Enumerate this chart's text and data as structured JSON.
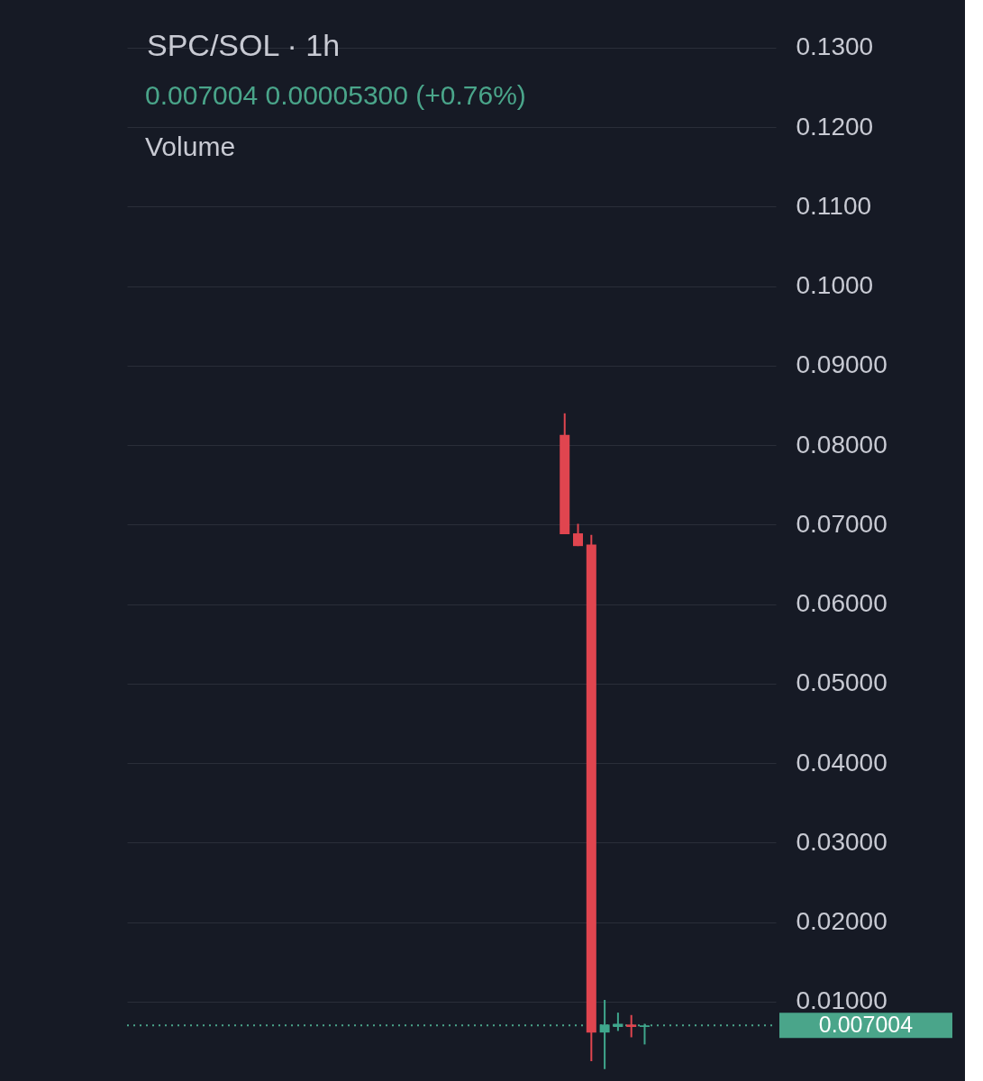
{
  "chart_data": {
    "type": "candlestick",
    "title": "SPC/SOL · 1h",
    "annotations": [
      "0.007004  0.00005300 (+0.76%)",
      "Volume"
    ],
    "categories": [
      null,
      null,
      null,
      null,
      null,
      null,
      null,
      null,
      null,
      null,
      null,
      null,
      null,
      null,
      null,
      null,
      null,
      null,
      null,
      null,
      null,
      null,
      null,
      null,
      null,
      null,
      null,
      null,
      null,
      null,
      null,
      null,
      null,
      null,
      null,
      null,
      null,
      null,
      null,
      null,
      null,
      null,
      null,
      null,
      null,
      null,
      null,
      null
    ],
    "ohlc": [
      null,
      null,
      null,
      null,
      null,
      null,
      null,
      null,
      null,
      null,
      null,
      null,
      null,
      null,
      null,
      null,
      null,
      null,
      null,
      null,
      null,
      null,
      null,
      null,
      null,
      null,
      null,
      null,
      null,
      null,
      null,
      null,
      [
        0.0813,
        0.084,
        0.0688,
        0.0688
      ],
      [
        0.0689,
        0.0701,
        0.0673,
        0.0673
      ],
      [
        0.0675,
        0.0687,
        0.0025,
        0.0061
      ],
      [
        0.0061,
        0.0102,
        0.0015,
        0.0071
      ],
      [
        0.0068,
        0.0086,
        0.0063,
        0.0072
      ],
      [
        0.0071,
        0.0083,
        0.0055,
        0.0068
      ],
      [
        0.0068,
        0.0072,
        0.0046,
        0.007
      ],
      null,
      null,
      null,
      null,
      null,
      null,
      null,
      null,
      null
    ],
    "colors": [
      null,
      null,
      null,
      null,
      null,
      null,
      null,
      null,
      null,
      null,
      null,
      null,
      null,
      null,
      null,
      null,
      null,
      null,
      null,
      null,
      null,
      null,
      null,
      null,
      null,
      null,
      null,
      null,
      null,
      null,
      null,
      null,
      "#e0454f",
      "#e0454f",
      "#e0454f",
      "#3fa68c",
      "#3fa68c",
      "#e0454f",
      "#3fa68c",
      null,
      null,
      null,
      null,
      null,
      null,
      null,
      null,
      null
    ],
    "ylim": [
      0,
      0.136
    ],
    "yticks": [
      {
        "value": 0.01,
        "label": "0.01000"
      },
      {
        "value": 0.02,
        "label": "0.02000"
      },
      {
        "value": 0.03,
        "label": "0.03000"
      },
      {
        "value": 0.04,
        "label": "0.04000"
      },
      {
        "value": 0.05,
        "label": "0.05000"
      },
      {
        "value": 0.06,
        "label": "0.06000"
      },
      {
        "value": 0.07,
        "label": "0.07000"
      },
      {
        "value": 0.08,
        "label": "0.08000"
      },
      {
        "value": 0.09,
        "label": "0.09000"
      },
      {
        "value": 0.1,
        "label": "0.1000"
      },
      {
        "value": 0.11,
        "label": "0.1100"
      },
      {
        "value": 0.12,
        "label": "0.1200"
      },
      {
        "value": 0.13,
        "label": "0.1300"
      }
    ],
    "tick_labels": "y",
    "grid": "y",
    "ref_lines": [
      {
        "axis": "y",
        "value": 0.007004,
        "label": "0.007004",
        "color": "#4aa58a",
        "line_style": "dotted"
      }
    ]
  }
}
